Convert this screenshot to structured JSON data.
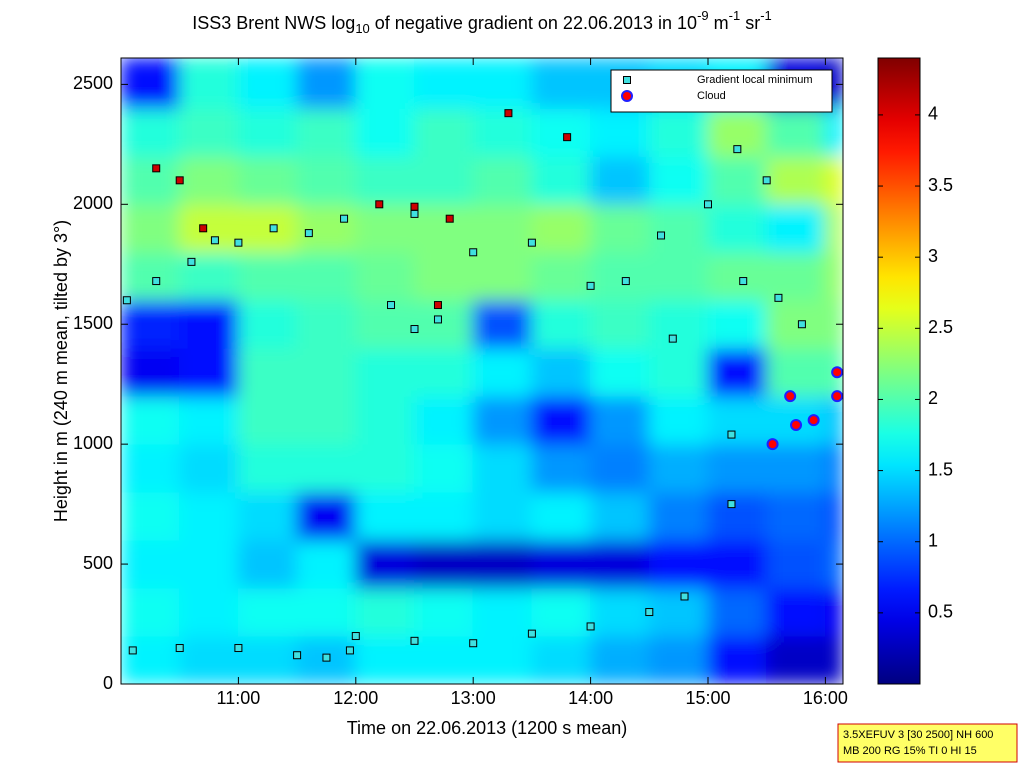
{
  "chart_data": {
    "type": "heatmap",
    "title": [
      "ISS3 Brent NWS log",
      "10",
      " of negative gradient on 22.06.2013 in 10",
      "-9",
      " m",
      "-1",
      " sr",
      "-1"
    ],
    "x_label": "Time on 22.06.2013 (1200 s mean)",
    "y_label": "Height in m (240 m mean, tilted by 3°)",
    "xlim": [
      10.0,
      16.15
    ],
    "ylim": [
      0,
      2610
    ],
    "xticks": [
      {
        "value": 11,
        "label": "11:00"
      },
      {
        "value": 12,
        "label": "12:00"
      },
      {
        "value": 13,
        "label": "13:00"
      },
      {
        "value": 14,
        "label": "14:00"
      },
      {
        "value": 15,
        "label": "15:00"
      },
      {
        "value": 16,
        "label": "16:00"
      }
    ],
    "yticks": [
      0,
      500,
      1000,
      1500,
      2000,
      2500
    ],
    "colormap": "jet",
    "clim": [
      0,
      4.4
    ],
    "cticks": [
      0.5,
      1,
      1.5,
      2,
      2.5,
      3,
      3.5,
      4
    ],
    "xbins": [
      10.0,
      10.5,
      11.0,
      11.5,
      12.0,
      12.5,
      13.0,
      13.5,
      14.0,
      14.5,
      15.0,
      15.5,
      16.0,
      16.15
    ],
    "ybins": [
      0,
      200,
      400,
      600,
      800,
      1000,
      1200,
      1400,
      1600,
      1800,
      2000,
      2200,
      2400,
      2610
    ],
    "z": [
      [
        1.6,
        1.5,
        1.5,
        1.4,
        1.6,
        1.6,
        1.6,
        1.5,
        1.3,
        1.2,
        0.6,
        0.3,
        0.3
      ],
      [
        1.7,
        1.6,
        1.7,
        1.7,
        1.8,
        1.7,
        1.6,
        1.7,
        1.5,
        1.4,
        1.0,
        0.6,
        0.5
      ],
      [
        1.6,
        1.6,
        1.4,
        1.6,
        0.4,
        0.3,
        0.3,
        0.4,
        0.4,
        0.6,
        0.6,
        0.9,
        1.0
      ],
      [
        1.7,
        1.6,
        1.5,
        0.5,
        1.6,
        1.6,
        1.5,
        1.6,
        1.4,
        1.1,
        0.9,
        1.0,
        0.9
      ],
      [
        1.6,
        1.5,
        1.8,
        1.8,
        1.8,
        1.7,
        1.5,
        1.2,
        1.1,
        1.3,
        1.2,
        1.2,
        1.1
      ],
      [
        1.7,
        1.6,
        1.9,
        1.9,
        1.8,
        1.6,
        1.2,
        0.6,
        1.2,
        1.6,
        1.5,
        1.5,
        1.4
      ],
      [
        0.5,
        0.6,
        1.9,
        1.9,
        1.8,
        1.8,
        1.6,
        1.4,
        1.7,
        1.8,
        0.6,
        2.0,
        2.0
      ],
      [
        0.7,
        0.6,
        1.8,
        1.9,
        2.0,
        2.0,
        0.9,
        1.8,
        1.9,
        1.8,
        1.7,
        2.2,
        2.2
      ],
      [
        2.0,
        1.9,
        2.0,
        2.0,
        2.1,
        2.2,
        2.2,
        2.1,
        2.0,
        2.0,
        2.1,
        2.1,
        2.3
      ],
      [
        2.2,
        2.5,
        2.5,
        2.3,
        2.2,
        2.2,
        2.2,
        2.3,
        2.1,
        2.0,
        1.8,
        1.6,
        2.4
      ],
      [
        2.0,
        2.2,
        2.1,
        2.0,
        1.9,
        1.9,
        2.0,
        1.8,
        1.4,
        1.7,
        2.0,
        2.4,
        2.6
      ],
      [
        1.8,
        1.9,
        1.8,
        1.9,
        1.7,
        1.9,
        1.8,
        1.7,
        1.6,
        1.8,
        2.3,
        2.0,
        1.6
      ],
      [
        0.6,
        1.8,
        1.6,
        1.2,
        1.7,
        1.6,
        1.6,
        1.4,
        1.4,
        1.5,
        1.6,
        0.4,
        0.3
      ]
    ],
    "legend": "northeast",
    "series": [
      {
        "name": "Gradient local minimum",
        "marker": "square",
        "color": "#40e0e0",
        "edgecolor": "#000000",
        "x": [
          10.1,
          10.5,
          11.0,
          11.5,
          11.75,
          11.95,
          12.0,
          12.5,
          13.0,
          13.5,
          14.0,
          14.5,
          14.8,
          10.05,
          10.3,
          10.6,
          10.8,
          11.0,
          11.3,
          11.6,
          11.9,
          12.5,
          13.0,
          13.5,
          14.0,
          14.3,
          14.6,
          15.0,
          15.25,
          15.5,
          15.3,
          15.6,
          15.8,
          12.3,
          12.5,
          12.7,
          14.7,
          15.2,
          15.2
        ],
        "y": [
          140,
          150,
          150,
          120,
          110,
          140,
          200,
          180,
          170,
          210,
          240,
          300,
          365,
          1600,
          1680,
          1760,
          1850,
          1840,
          1900,
          1880,
          1940,
          1960,
          1800,
          1840,
          1660,
          1680,
          1870,
          2000,
          2230,
          2100,
          1680,
          1610,
          1500,
          1580,
          1480,
          1520,
          1440,
          1040,
          750
        ]
      },
      {
        "name": "Cloud",
        "marker": "circle",
        "color": "#ff0000",
        "edgecolor": "#2020ff",
        "x": [
          15.55,
          15.75,
          15.9,
          16.1,
          16.1,
          15.7
        ],
        "y": [
          1000,
          1080,
          1100,
          1200,
          1300,
          1200
        ]
      },
      {
        "marker": "square",
        "color": "#cc0000",
        "edgecolor": "#000000",
        "x": [
          10.3,
          10.5,
          12.2,
          12.5,
          12.8,
          10.7,
          13.3,
          13.8,
          12.7
        ],
        "y": [
          2150,
          2100,
          2000,
          1990,
          1940,
          1900,
          2380,
          2280,
          1580
        ]
      }
    ]
  },
  "info_box": [
    "3.5XEFUV 3 [30 2500] NH 600",
    "MB 200 RG 15% TI 0 HI 15"
  ]
}
